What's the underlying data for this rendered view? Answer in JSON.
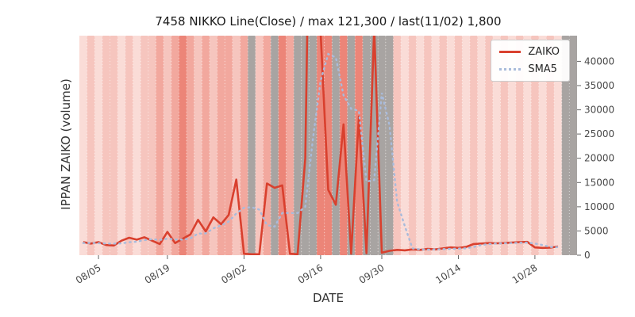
{
  "chart_data": {
    "type": "line",
    "title": "7458 NIKKO Line(Close) / max 121,300 / last(11/02) 1,800",
    "xlabel": "DATE",
    "ylabel": "IPPAN ZAIKO (volume)",
    "ylim": [
      0,
      45300
    ],
    "yticks": [
      0,
      5000,
      10000,
      15000,
      20000,
      25000,
      30000,
      35000,
      40000
    ],
    "xticks": [
      {
        "i": 2,
        "label": "08/05"
      },
      {
        "i": 11,
        "label": "08/19"
      },
      {
        "i": 21,
        "label": "09/02"
      },
      {
        "i": 31,
        "label": "09/16"
      },
      {
        "i": 39,
        "label": "09/30"
      },
      {
        "i": 49,
        "label": "10/14"
      },
      {
        "i": 59,
        "label": "10/28"
      }
    ],
    "x_dates": [
      "08/03",
      "08/04",
      "08/05",
      "08/06",
      "08/10",
      "08/11",
      "08/12",
      "08/13",
      "08/16",
      "08/17",
      "08/18",
      "08/19",
      "08/20",
      "08/23",
      "08/24",
      "08/25",
      "08/26",
      "08/27",
      "08/30",
      "08/31",
      "09/01",
      "09/02",
      "09/03",
      "09/06",
      "09/07",
      "09/08",
      "09/09",
      "09/10",
      "09/13",
      "09/14",
      "09/15",
      "09/16",
      "09/17",
      "09/21",
      "09/22",
      "09/24",
      "09/27",
      "09/28",
      "09/29",
      "09/30",
      "10/01",
      "10/04",
      "10/05",
      "10/06",
      "10/07",
      "10/08",
      "10/11",
      "10/12",
      "10/13",
      "10/14",
      "10/15",
      "10/18",
      "10/19",
      "10/20",
      "10/21",
      "10/22",
      "10/25",
      "10/26",
      "10/27",
      "10/28",
      "10/29",
      "11/01",
      "11/02"
    ],
    "series": [
      {
        "name": "ZAIKO",
        "color": "#d9402e",
        "style": "solid",
        "values": [
          2700,
          2400,
          2700,
          2100,
          2000,
          3000,
          3600,
          3200,
          3700,
          3000,
          2300,
          4800,
          2500,
          3400,
          4300,
          7300,
          4900,
          7800,
          6400,
          8300,
          15600,
          300,
          200,
          200,
          14800,
          13900,
          14400,
          300,
          200,
          20000,
          121300,
          46000,
          13500,
          10400,
          27000,
          300,
          28600,
          400,
          47000,
          500,
          900,
          1100,
          1000,
          1200,
          1100,
          1300,
          1200,
          1400,
          1600,
          1500,
          1700,
          2300,
          2400,
          2500,
          2450,
          2500,
          2600,
          2700,
          2750,
          1600,
          1500,
          1550,
          1800
        ]
      },
      {
        "name": "SMA5",
        "color": "#a9bbdb",
        "style": "dotted",
        "values": [
          2500,
          2520,
          2480,
          2400,
          2380,
          2440,
          2680,
          2780,
          3100,
          3300,
          3160,
          3400,
          3260,
          3200,
          3460,
          4460,
          4480,
          5540,
          6140,
          6940,
          8600,
          9800,
          9900,
          9400,
          6200,
          5900,
          8700,
          8700,
          8700,
          10000,
          24000,
          36000,
          41500,
          40800,
          33000,
          30200,
          29800,
          15200,
          15500,
          33500,
          26800,
          11000,
          6000,
          1400,
          1200,
          1150,
          1200,
          1250,
          1300,
          1350,
          1400,
          1700,
          2100,
          2300,
          2400,
          2450,
          2500,
          2550,
          2600,
          2400,
          2100,
          1700,
          1650
        ]
      }
    ],
    "legend": {
      "position": "upper right",
      "entries": [
        "ZAIKO",
        "SMA5"
      ]
    },
    "background_bands": {
      "levels": {
        "L0": "#fadcd7",
        "L1": "#f6c5be",
        "L2": "#f2a89e",
        "L3": "#ec8578",
        "G": "#a8a4a2"
      },
      "per_day": [
        "L0",
        "L1",
        "L0",
        "L1",
        "L1",
        "L0",
        "L1",
        "L0",
        "L1",
        "L1",
        "L2",
        "L1",
        "L2",
        "L3",
        "L2",
        "L1",
        "L2",
        "L1",
        "L2",
        "L2",
        "L1",
        "L2",
        "G",
        "L1",
        "L2",
        "G",
        "L3",
        "L2",
        "G",
        "G",
        "G",
        "L3",
        "L3",
        "G",
        "L3",
        "G",
        "L3",
        "G",
        "G",
        "G",
        "G",
        "L1",
        "L0",
        "L1",
        "L0",
        "L1",
        "L0",
        "L1",
        "L0",
        "L1",
        "L0",
        "L1",
        "L0",
        "L1",
        "L0",
        "L1",
        "L0",
        "L1",
        "L0",
        "L1",
        "L0",
        "L1",
        "L0"
      ]
    },
    "right_edge_days": 2,
    "right_edge_band": "G",
    "grid": {
      "day_separators": true,
      "separator_color": "#ffffff"
    },
    "tick_color": "#484848"
  }
}
